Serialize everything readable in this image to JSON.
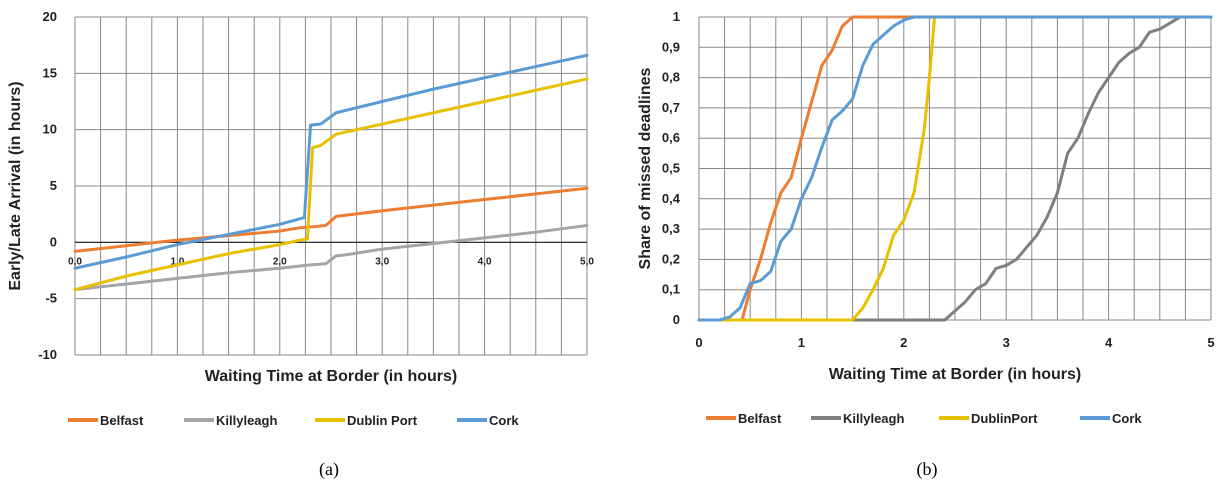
{
  "chart_data": [
    {
      "type": "line",
      "caption": "(a)",
      "xlabel": "Waiting Time at Border (in hours)",
      "ylabel": "Early/Late Arrival (in hours)",
      "xlim": [
        0,
        5
      ],
      "ylim": [
        -10,
        20
      ],
      "x_tick_labels": [
        "0,0",
        "1,0",
        "2,0",
        "3,0",
        "4,0",
        "5,0"
      ],
      "y_tick_labels": [
        "-10",
        "-5",
        "0",
        "5",
        "10",
        "15",
        "20"
      ],
      "grid": true,
      "legend_placement": "bottom",
      "series": [
        {
          "name": "Belfast",
          "color": "#ED7D31",
          "x": [
            0,
            0.5,
            1.0,
            1.5,
            2.0,
            2.2,
            2.35,
            2.45,
            2.55,
            3.0,
            3.5,
            4.0,
            4.5,
            5.0
          ],
          "y": [
            -0.8,
            -0.3,
            0.2,
            0.6,
            1.0,
            1.3,
            1.4,
            1.5,
            2.3,
            2.8,
            3.3,
            3.8,
            4.3,
            4.8
          ]
        },
        {
          "name": "Killyleagh",
          "color": "#A5A5A5",
          "x": [
            0,
            0.5,
            1.0,
            1.5,
            2.0,
            2.3,
            2.45,
            2.55,
            2.65,
            3.0,
            3.5,
            4.0,
            4.5,
            5.0
          ],
          "y": [
            -4.2,
            -3.7,
            -3.2,
            -2.7,
            -2.3,
            -2.0,
            -1.9,
            -1.2,
            -1.1,
            -0.6,
            -0.1,
            0.4,
            0.9,
            1.5
          ]
        },
        {
          "name": "Dublin Port",
          "color": "#E8C000",
          "x": [
            0,
            0.5,
            1.0,
            1.5,
            2.0,
            2.2,
            2.27,
            2.32,
            2.4,
            2.55,
            3.0,
            3.5,
            4.0,
            4.5,
            5.0
          ],
          "y": [
            -4.2,
            -3.0,
            -2.0,
            -1.0,
            -0.2,
            0.2,
            0.3,
            8.4,
            8.6,
            9.6,
            10.5,
            11.5,
            12.5,
            13.5,
            14.5
          ]
        },
        {
          "name": "Cork",
          "color": "#5B9BD5",
          "x": [
            0,
            0.5,
            1.0,
            1.5,
            2.0,
            2.2,
            2.24,
            2.3,
            2.4,
            2.55,
            3.0,
            3.5,
            4.0,
            4.5,
            5.0
          ],
          "y": [
            -2.3,
            -1.3,
            -0.2,
            0.7,
            1.6,
            2.1,
            2.2,
            10.4,
            10.5,
            11.5,
            12.5,
            13.6,
            14.6,
            15.6,
            16.6
          ]
        }
      ]
    },
    {
      "type": "line",
      "caption": "(b)",
      "xlabel": "Waiting Time at Border (in hours)",
      "ylabel": "Share of missed deadlines",
      "xlim": [
        0,
        5
      ],
      "ylim": [
        0,
        1
      ],
      "x_tick_labels": [
        "0",
        "1",
        "2",
        "3",
        "4",
        "5"
      ],
      "y_tick_labels": [
        "0",
        "0,1",
        "0,2",
        "0,3",
        "0,4",
        "0,5",
        "0,6",
        "0,7",
        "0,8",
        "0,9",
        "1"
      ],
      "grid": true,
      "legend_placement": "bottom",
      "series": [
        {
          "name": "Belfast",
          "color": "#ED7D31",
          "x": [
            0,
            0.42,
            0.5,
            0.6,
            0.7,
            0.8,
            0.9,
            1.0,
            1.1,
            1.2,
            1.3,
            1.4,
            1.5,
            5.0
          ],
          "y": [
            0,
            0,
            0.1,
            0.2,
            0.32,
            0.42,
            0.47,
            0.6,
            0.72,
            0.84,
            0.89,
            0.97,
            1.0,
            1.0
          ]
        },
        {
          "name": "Killyleagh",
          "color": "#7F7F7F",
          "x": [
            0,
            2.4,
            2.5,
            2.6,
            2.7,
            2.8,
            2.9,
            3.0,
            3.1,
            3.2,
            3.3,
            3.4,
            3.5,
            3.6,
            3.7,
            3.8,
            3.9,
            4.0,
            4.1,
            4.2,
            4.3,
            4.4,
            4.5,
            4.6,
            4.7,
            5.0
          ],
          "y": [
            0,
            0,
            0.03,
            0.06,
            0.1,
            0.12,
            0.17,
            0.18,
            0.2,
            0.24,
            0.28,
            0.34,
            0.42,
            0.55,
            0.6,
            0.68,
            0.75,
            0.8,
            0.85,
            0.88,
            0.9,
            0.95,
            0.96,
            0.98,
            1.0,
            1.0
          ]
        },
        {
          "name": "DublinPort",
          "color": "#E8C000",
          "x": [
            0,
            1.5,
            1.6,
            1.7,
            1.8,
            1.9,
            2.0,
            2.1,
            2.2,
            2.25,
            2.3,
            5.0
          ],
          "y": [
            0,
            0,
            0.04,
            0.1,
            0.17,
            0.28,
            0.33,
            0.42,
            0.63,
            0.8,
            1.0,
            1.0
          ]
        },
        {
          "name": "Cork",
          "color": "#5B9BD5",
          "x": [
            0,
            0.2,
            0.3,
            0.4,
            0.5,
            0.6,
            0.7,
            0.8,
            0.9,
            1.0,
            1.1,
            1.2,
            1.3,
            1.4,
            1.5,
            1.6,
            1.7,
            1.8,
            1.9,
            2.0,
            2.1,
            5.0
          ],
          "y": [
            0,
            0,
            0.01,
            0.04,
            0.12,
            0.13,
            0.16,
            0.26,
            0.3,
            0.4,
            0.47,
            0.57,
            0.66,
            0.69,
            0.73,
            0.84,
            0.91,
            0.94,
            0.97,
            0.99,
            1.0,
            1.0
          ]
        }
      ]
    }
  ]
}
